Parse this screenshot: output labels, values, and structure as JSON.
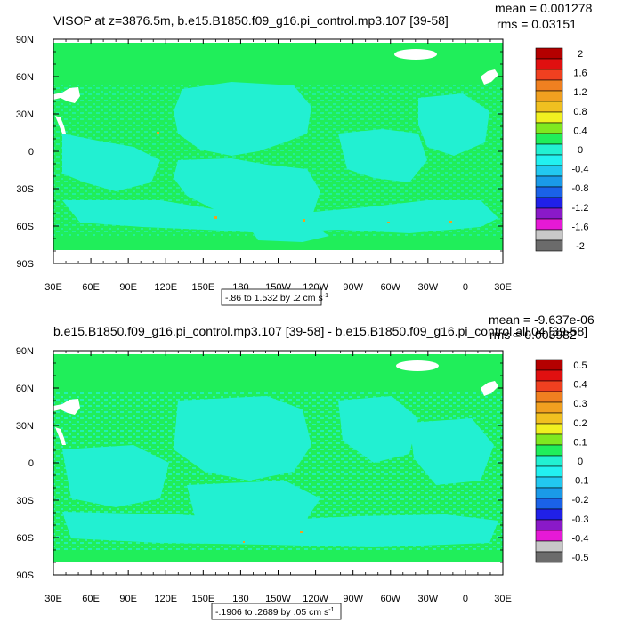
{
  "colors": {
    "background": "#20ee5a",
    "land": "#ffffff",
    "ocean_low": "#22f0d2",
    "ocean_warm": "#f0a020",
    "frame": "#000000",
    "colorbar": [
      "#6b6b6b",
      "#c8c8c8",
      "#e619d6",
      "#8a19c8",
      "#2020e8",
      "#1a62e8",
      "#1a9ae8",
      "#22c8f0",
      "#22f0f0",
      "#22f0d2",
      "#20ee5a",
      "#80e820",
      "#f0f020",
      "#f0c020",
      "#f0a020",
      "#f08020",
      "#f04020",
      "#e01010",
      "#b40000"
    ]
  },
  "chart_data": [
    {
      "type": "heatmap",
      "title": "VISOP at z=3876.5m, b.e15.B1850.f09_g16.pi_control.mp3.107 [39-58]",
      "stats": [
        "mean = 0.001278",
        "rms = 0.03151"
      ],
      "x_ticks": [
        "30E",
        "60E",
        "90E",
        "120E",
        "150E",
        "180",
        "150W",
        "120W",
        "90W",
        "60W",
        "30W",
        "0",
        "30E"
      ],
      "y_ticks": [
        "90N",
        "60N",
        "30N",
        "0",
        "30S",
        "60S",
        "90S"
      ],
      "xlim": [
        30,
        390
      ],
      "ylim": [
        -90,
        90
      ],
      "colorbar_labels": [
        "2",
        "1.6",
        "1.2",
        "0.8",
        "0.4",
        "0",
        "-0.4",
        "-0.8",
        "-1.2",
        "-1.6",
        "-2"
      ],
      "range_label": "-.86 to 1.532 by .2 cm s",
      "range_unit_sup": "-1"
    },
    {
      "type": "heatmap",
      "title": "b.e15.B1850.f09_g16.pi_control.mp3.107 [39-58] - b.e15.B1850.f09_g16.pi_control.all.04 [39-58]",
      "stats": [
        "mean = -9.637e-06",
        "rms = 0.003982"
      ],
      "x_ticks": [
        "30E",
        "60E",
        "90E",
        "120E",
        "150E",
        "180",
        "150W",
        "120W",
        "90W",
        "60W",
        "30W",
        "0",
        "30E"
      ],
      "y_ticks": [
        "90N",
        "60N",
        "30N",
        "0",
        "30S",
        "60S",
        "90S"
      ],
      "xlim": [
        30,
        390
      ],
      "ylim": [
        -90,
        90
      ],
      "colorbar_labels": [
        "0.5",
        "0.4",
        "0.3",
        "0.2",
        "0.1",
        "0",
        "-0.1",
        "-0.2",
        "-0.3",
        "-0.4",
        "-0.5"
      ],
      "range_label": "-.1906 to .2689 by .05 cm s",
      "range_unit_sup": "-1"
    }
  ]
}
